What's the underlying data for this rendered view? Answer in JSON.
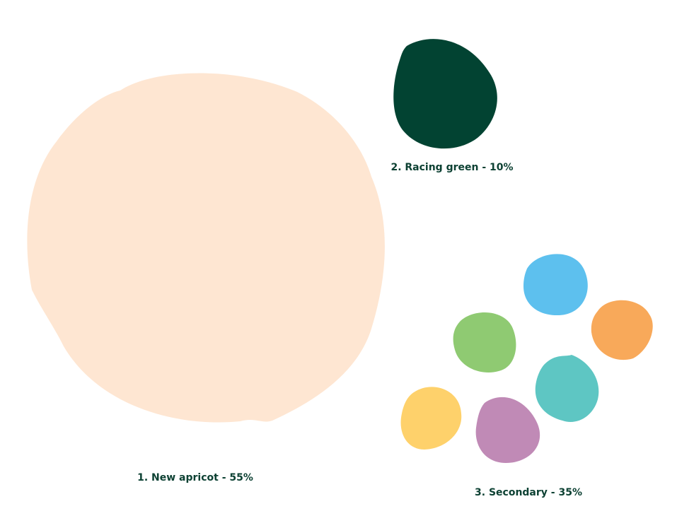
{
  "groups": [
    {
      "label": "1. New apricot - 55%",
      "colors": [
        "#fee6d2"
      ]
    },
    {
      "label": "2. Racing green - 10%",
      "colors": [
        "#024332"
      ]
    },
    {
      "label": "3. Secondary - 35%",
      "colors": [
        "#5dc0ee",
        "#f8a95a",
        "#8fca72",
        "#5ec6c3",
        "#fed16b",
        "#c08ab6"
      ]
    }
  ]
}
